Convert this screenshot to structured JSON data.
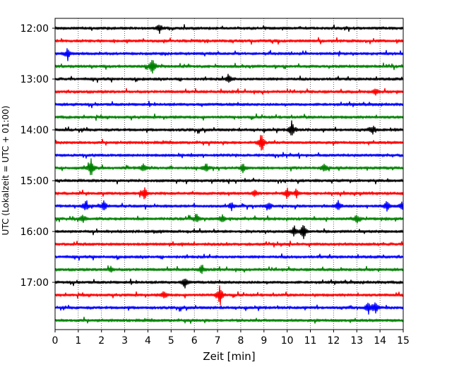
{
  "chart_data": {
    "type": "line",
    "subtype": "helicorder",
    "xlabel": "Zeit  [min]",
    "ylabel": "UTC (Lokalzeit = UTC + 01:00)",
    "xlim": [
      0,
      15
    ],
    "x_ticks": [
      "0",
      "1",
      "2",
      "3",
      "4",
      "5",
      "6",
      "7",
      "8",
      "9",
      "10",
      "11",
      "12",
      "13",
      "14",
      "15"
    ],
    "y_ticks": [
      "12:00",
      "13:00",
      "14:00",
      "15:00",
      "16:00",
      "17:00"
    ],
    "grid": "vertical-dotted",
    "trace_colors": [
      "#000000",
      "#ff0000",
      "#0000ff",
      "#008000"
    ],
    "minutes_per_line": 15,
    "series": [
      {
        "start": "12:00",
        "events": [
          {
            "x": 4.5,
            "amp": 1.0
          }
        ]
      },
      {
        "start": "12:15",
        "events": []
      },
      {
        "start": "12:30",
        "events": [
          {
            "x": 0.55,
            "amp": 1.4
          }
        ]
      },
      {
        "start": "12:45",
        "events": [
          {
            "x": 4.2,
            "amp": 2.2
          }
        ]
      },
      {
        "start": "13:00",
        "events": [
          {
            "x": 7.5,
            "amp": 1.0
          }
        ]
      },
      {
        "start": "13:15",
        "events": [
          {
            "x": 13.8,
            "amp": 0.9
          }
        ]
      },
      {
        "start": "13:30",
        "events": []
      },
      {
        "start": "13:45",
        "events": []
      },
      {
        "start": "14:00",
        "events": [
          {
            "x": 10.2,
            "amp": 2.0
          },
          {
            "x": 13.7,
            "amp": 0.9
          }
        ]
      },
      {
        "start": "14:15",
        "events": [
          {
            "x": 8.9,
            "amp": 2.4
          }
        ]
      },
      {
        "start": "14:30",
        "events": []
      },
      {
        "start": "14:45",
        "events": [
          {
            "x": 1.55,
            "amp": 2.2
          },
          {
            "x": 3.8,
            "amp": 0.9
          },
          {
            "x": 6.5,
            "amp": 1.0
          },
          {
            "x": 8.1,
            "amp": 1.1
          },
          {
            "x": 11.6,
            "amp": 1.0
          }
        ]
      },
      {
        "start": "15:00",
        "events": []
      },
      {
        "start": "15:15",
        "events": [
          {
            "x": 3.85,
            "amp": 1.6
          },
          {
            "x": 8.6,
            "amp": 0.9
          },
          {
            "x": 10.0,
            "amp": 1.2
          },
          {
            "x": 10.4,
            "amp": 1.0
          }
        ]
      },
      {
        "start": "15:30",
        "events": [
          {
            "x": 1.3,
            "amp": 1.2
          },
          {
            "x": 2.1,
            "amp": 1.2
          },
          {
            "x": 7.6,
            "amp": 0.9
          },
          {
            "x": 9.2,
            "amp": 1.0
          },
          {
            "x": 12.2,
            "amp": 1.1
          },
          {
            "x": 14.3,
            "amp": 1.2
          },
          {
            "x": 14.95,
            "amp": 1.0
          }
        ]
      },
      {
        "start": "15:45",
        "events": [
          {
            "x": 1.2,
            "amp": 0.9
          },
          {
            "x": 6.1,
            "amp": 0.9
          },
          {
            "x": 7.2,
            "amp": 0.9
          },
          {
            "x": 13.0,
            "amp": 0.9
          }
        ]
      },
      {
        "start": "16:00",
        "events": [
          {
            "x": 10.7,
            "amp": 2.0
          },
          {
            "x": 10.3,
            "amp": 1.3
          }
        ]
      },
      {
        "start": "16:15",
        "events": []
      },
      {
        "start": "16:30",
        "events": []
      },
      {
        "start": "16:45",
        "events": [
          {
            "x": 6.3,
            "amp": 0.9
          },
          {
            "x": 2.4,
            "amp": 0.7
          }
        ]
      },
      {
        "start": "17:00",
        "events": [
          {
            "x": 5.6,
            "amp": 1.2
          }
        ]
      },
      {
        "start": "17:15",
        "events": [
          {
            "x": 7.1,
            "amp": 2.5
          },
          {
            "x": 4.7,
            "amp": 0.9
          }
        ]
      },
      {
        "start": "17:30",
        "events": [
          {
            "x": 13.5,
            "amp": 1.5
          },
          {
            "x": 13.8,
            "amp": 1.3
          }
        ]
      },
      {
        "start": "17:45",
        "events": []
      }
    ]
  }
}
